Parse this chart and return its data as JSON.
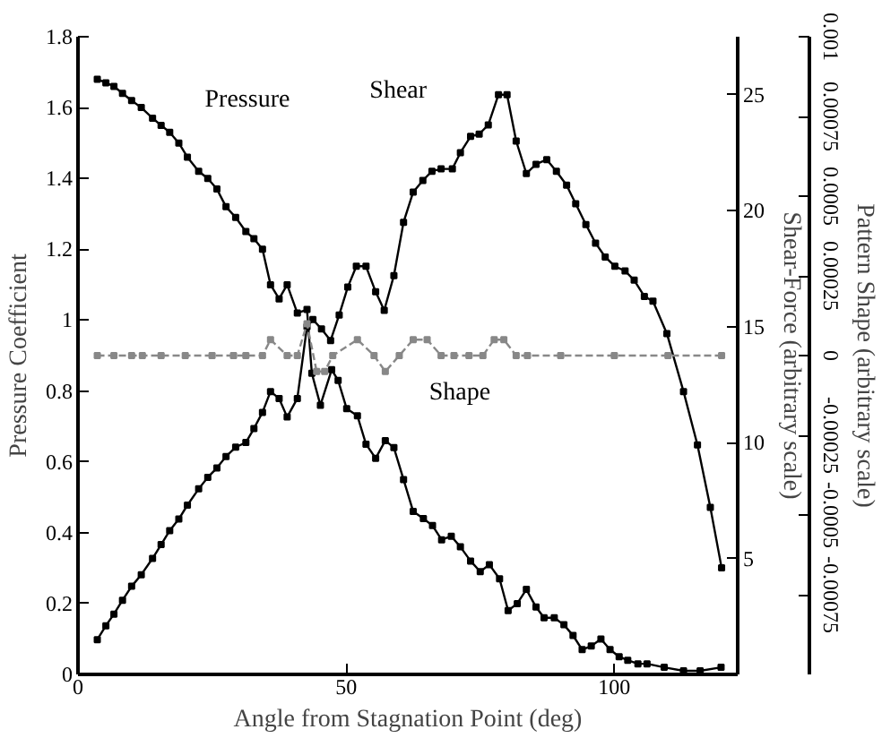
{
  "chart_data": {
    "type": "line",
    "xlabel": "Angle from Stagnation Point (deg)",
    "ylabel": "Pressure Coefficient",
    "y2label": "Shear-Force (arbitrary scale)",
    "y3label": "Pattern Shape (arbitrary scale)",
    "xlim": [
      0,
      123
    ],
    "xticks": [
      0,
      50,
      100
    ],
    "ylim": [
      0,
      1.8
    ],
    "yticks": [
      0,
      0.2,
      0.4,
      0.6,
      0.8,
      1,
      1.2,
      1.4,
      1.6,
      1.8
    ],
    "y2lim": [
      0,
      27.5
    ],
    "y2ticks": [
      5,
      10,
      15,
      20,
      25
    ],
    "y3lim": [
      -0.001,
      0.001
    ],
    "y3ticks": [
      -0.00075,
      -0.0005,
      -0.00025,
      0,
      0.00025,
      0.0005,
      0.00075,
      0.001
    ],
    "grid": false,
    "legend": false,
    "marker": "square",
    "series": [
      {
        "name": "Pressure",
        "color": "#000000",
        "axis": "y",
        "line_style": "solid",
        "x": [
          3.6,
          5.2,
          6.7,
          8.3,
          10,
          11.8,
          13.9,
          15.5,
          17.1,
          18.8,
          20.4,
          22.5,
          24.2,
          25.9,
          27.6,
          29.4,
          31.3,
          32.8,
          34.4,
          35.9,
          37.5,
          39,
          40.9,
          42.7,
          43.6,
          45.2,
          47.3,
          48.5,
          50.1,
          52.1,
          53.7,
          55.5,
          57.3,
          58.9,
          60.7,
          62.5,
          64.4,
          66.1,
          67.8,
          69.6,
          71.3,
          73.2,
          75,
          76.7,
          78.6,
          80.2,
          81.9,
          83.6,
          85.4,
          86.9,
          88.8,
          90.6,
          92.3,
          94,
          95.7,
          97.5,
          99.2,
          100.9,
          102.5,
          104.4,
          106.1,
          109.3,
          112.9,
          116,
          119.9
        ],
        "values": [
          1.68,
          1.67,
          1.66,
          1.64,
          1.62,
          1.6,
          1.57,
          1.55,
          1.53,
          1.5,
          1.46,
          1.42,
          1.4,
          1.37,
          1.32,
          1.29,
          1.25,
          1.23,
          1.2,
          1.1,
          1.06,
          1.1,
          1.02,
          1.03,
          0.85,
          0.76,
          0.86,
          0.83,
          0.75,
          0.73,
          0.65,
          0.61,
          0.66,
          0.64,
          0.55,
          0.46,
          0.44,
          0.42,
          0.38,
          0.39,
          0.36,
          0.32,
          0.29,
          0.31,
          0.27,
          0.18,
          0.2,
          0.24,
          0.19,
          0.16,
          0.16,
          0.14,
          0.11,
          0.07,
          0.08,
          0.1,
          0.07,
          0.05,
          0.04,
          0.03,
          0.03,
          0.02,
          0.01,
          0.01,
          0.02
        ]
      },
      {
        "name": "Shear",
        "color": "#000000",
        "axis": "y2",
        "line_style": "solid",
        "x": [
          3.6,
          5.2,
          6.7,
          8.3,
          10,
          11.8,
          13.9,
          15.5,
          17.1,
          18.8,
          20.4,
          22.5,
          24.2,
          25.9,
          27.6,
          29.4,
          31.3,
          32.8,
          34.4,
          35.9,
          37.5,
          39,
          40.9,
          42.7,
          43.8,
          45.4,
          47.1,
          48.7,
          50.3,
          51.9,
          53.7,
          55.5,
          57.1,
          58.9,
          60.7,
          62.5,
          64.3,
          66,
          67.7,
          69.8,
          71.3,
          73.2,
          74.8,
          76.5,
          78.4,
          80,
          81.7,
          83.6,
          85.4,
          87.4,
          89.2,
          91.1,
          92.8,
          94.7,
          96.5,
          98.3,
          100.1,
          102,
          103.7,
          105.6,
          107.2,
          109.8,
          112.9,
          115.5,
          117.9,
          120
        ],
        "values": [
          1.5,
          2.1,
          2.6,
          3.2,
          3.8,
          4.3,
          5,
          5.6,
          6.2,
          6.7,
          7.3,
          8,
          8.5,
          8.9,
          9.4,
          9.8,
          10,
          10.6,
          11.3,
          12.2,
          11.9,
          11.1,
          11.9,
          15,
          15.3,
          14.9,
          14.4,
          15.5,
          16.7,
          17.6,
          17.6,
          16.5,
          15.7,
          17.2,
          19.5,
          20.8,
          21.3,
          21.7,
          21.8,
          21.8,
          22.5,
          23.2,
          23.3,
          23.7,
          25,
          25,
          23,
          21.6,
          22,
          22.2,
          21.7,
          21.1,
          20.3,
          19.4,
          18.6,
          18,
          17.6,
          17.4,
          17,
          16.3,
          16.1,
          14.7,
          12.2,
          9.9,
          7.2,
          4.6
        ]
      },
      {
        "name": "Shape",
        "color": "#888888",
        "axis": "y3",
        "line_style": "dashed",
        "x": [
          3.6,
          6.7,
          10,
          12,
          15.5,
          20,
          25,
          29,
          31.3,
          34.4,
          35.9,
          39,
          40.9,
          42.7,
          44.5,
          46,
          47.5,
          52.1,
          55.2,
          57.3,
          59.9,
          62.5,
          65.1,
          67.7,
          70.1,
          72.9,
          75.5,
          77.6,
          79.4,
          81.7,
          83.8,
          90,
          100,
          110,
          120
        ],
        "values": [
          0,
          0,
          0,
          0,
          0,
          0,
          0,
          0,
          0,
          0,
          5e-05,
          0,
          0,
          0.0001,
          -5e-05,
          -5e-05,
          0,
          5e-05,
          0,
          -5e-05,
          0,
          5e-05,
          5e-05,
          0,
          0,
          0,
          0,
          5e-05,
          5e-05,
          0,
          0,
          0,
          0,
          0,
          0
        ]
      }
    ]
  }
}
